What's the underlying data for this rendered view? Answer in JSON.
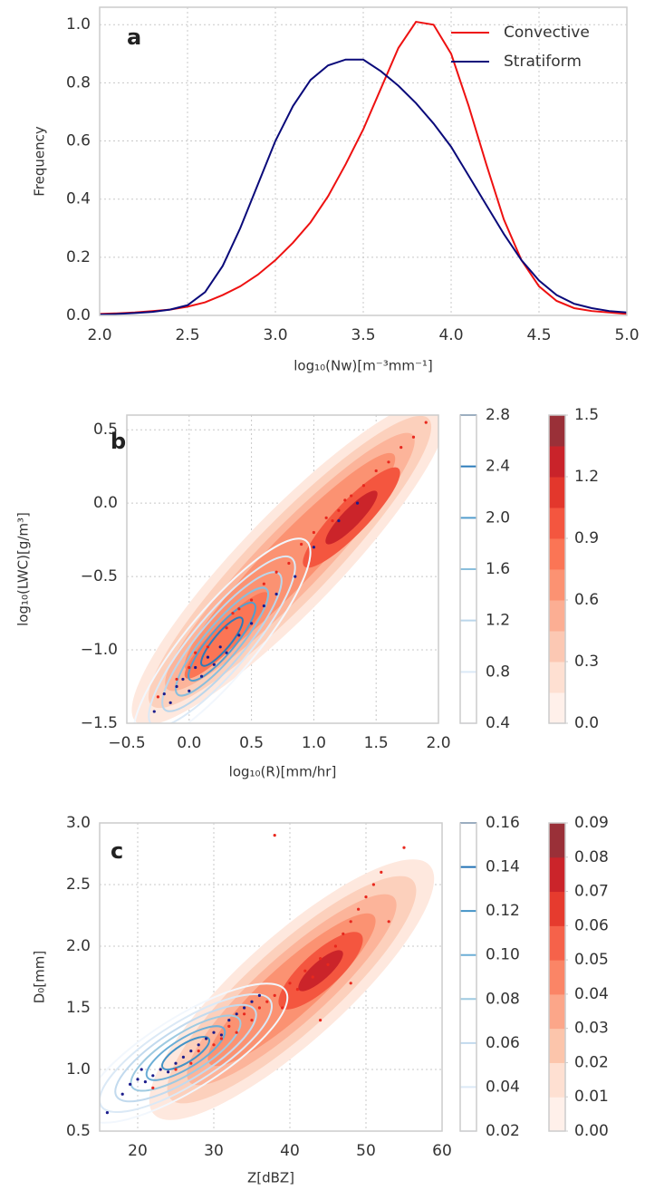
{
  "chart_data": [
    {
      "type": "line",
      "panel_label": "a",
      "xlabel": "log₁₀(Nw)[m⁻³mm⁻¹]",
      "ylabel": "Frequency",
      "x": [
        2.0,
        2.1,
        2.2,
        2.3,
        2.4,
        2.5,
        2.6,
        2.7,
        2.8,
        2.9,
        3.0,
        3.1,
        3.2,
        3.3,
        3.4,
        3.5,
        3.6,
        3.7,
        3.8,
        3.9,
        4.0,
        4.1,
        4.2,
        4.3,
        4.4,
        4.5,
        4.6,
        4.7,
        4.8,
        4.9,
        5.0
      ],
      "series": [
        {
          "name": "Convective",
          "color": "#ee1111",
          "values": [
            0.005,
            0.007,
            0.01,
            0.015,
            0.02,
            0.03,
            0.045,
            0.07,
            0.1,
            0.14,
            0.19,
            0.25,
            0.32,
            0.41,
            0.52,
            0.64,
            0.78,
            0.92,
            1.01,
            1.0,
            0.9,
            0.72,
            0.52,
            0.33,
            0.19,
            0.1,
            0.05,
            0.025,
            0.015,
            0.01,
            0.005
          ]
        },
        {
          "name": "Stratiform",
          "color": "#0a0a7a",
          "values": [
            0.003,
            0.005,
            0.008,
            0.012,
            0.02,
            0.035,
            0.08,
            0.17,
            0.3,
            0.45,
            0.6,
            0.72,
            0.81,
            0.86,
            0.88,
            0.88,
            0.84,
            0.79,
            0.73,
            0.66,
            0.58,
            0.48,
            0.38,
            0.28,
            0.19,
            0.12,
            0.07,
            0.04,
            0.025,
            0.015,
            0.01
          ]
        }
      ],
      "xlim": [
        2.0,
        5.0
      ],
      "xticks": [
        {
          "value": 2,
          "label": "2.0"
        },
        2.5,
        {
          "value": 3,
          "label": "3.0"
        },
        3.5,
        {
          "value": 4,
          "label": "4.0"
        },
        4.5,
        {
          "value": 5,
          "label": "5.0"
        }
      ],
      "ylim": [
        0,
        1.06
      ],
      "yticks": [
        {
          "value": 0,
          "label": "0.0"
        },
        0.2,
        0.4,
        0.6,
        0.8,
        {
          "value": 1,
          "label": "1.0"
        }
      ],
      "grid": true,
      "legend": "upper right"
    },
    {
      "type": "scatter",
      "panel_label": "b",
      "xlabel": "log₁₀(R)[mm/hr]",
      "ylabel": "log₁₀(LWC)[g/m³]",
      "series": [
        {
          "color": "#e8281e",
          "x": [
            -0.25,
            -0.1,
            0.05,
            0.15,
            0.3,
            0.4,
            0.5,
            0.6,
            0.7,
            0.8,
            0.9,
            1.0,
            1.1,
            1.2,
            1.25,
            1.3,
            1.4,
            1.5,
            1.6,
            1.7,
            1.8,
            1.9,
            0.35,
            1.15,
            0.0
          ],
          "values": [
            -1.32,
            -1.2,
            -1.02,
            -0.98,
            -0.85,
            -0.72,
            -0.66,
            -0.55,
            -0.47,
            -0.41,
            -0.28,
            -0.2,
            -0.1,
            -0.05,
            0.02,
            0.05,
            0.12,
            0.22,
            0.28,
            0.38,
            0.45,
            0.55,
            -0.75,
            -0.12,
            -1.12
          ]
        },
        {
          "color": "#1c1c8c",
          "x": [
            -0.28,
            -0.2,
            -0.15,
            -0.1,
            -0.05,
            0.0,
            0.05,
            0.1,
            0.15,
            0.2,
            0.25,
            0.3,
            0.4,
            0.5,
            0.6,
            0.7,
            0.85,
            1.0,
            1.2,
            1.35
          ],
          "values": [
            -1.42,
            -1.3,
            -1.36,
            -1.25,
            -1.2,
            -1.28,
            -1.12,
            -1.18,
            -1.05,
            -1.1,
            -0.98,
            -1.02,
            -0.9,
            -0.82,
            -0.7,
            -0.62,
            -0.5,
            -0.3,
            -0.12,
            0.0
          ]
        }
      ],
      "xlim": [
        -0.5,
        2.0
      ],
      "xticks": [
        {
          "value": -0.5,
          "label": "−0.5"
        },
        {
          "value": 0,
          "label": "0.0"
        },
        0.5,
        {
          "value": 1,
          "label": "1.0"
        },
        1.5,
        {
          "value": 2,
          "label": "2.0"
        }
      ],
      "ylim": [
        -1.5,
        0.6
      ],
      "yticks": [
        {
          "value": -1.5,
          "label": "−1.5"
        },
        {
          "value": -1,
          "label": "−1.0"
        },
        {
          "value": -0.5,
          "label": "−0.5"
        },
        {
          "value": 0,
          "label": "0.0"
        },
        0.5
      ],
      "grid": true,
      "colorbars": [
        {
          "style": "lines",
          "lim": [
            0.4,
            2.8
          ],
          "ticks": [
            0.4,
            0.8,
            1.2,
            1.6,
            {
              "value": 2,
              "label": "2.0"
            },
            2.4,
            2.8
          ],
          "colors": [
            "#f2f7fd",
            "#dbe9f6",
            "#bad6eb",
            "#89bedc",
            "#539ecd",
            "#2b7bba",
            "#0b559f"
          ]
        },
        {
          "style": "filled",
          "lim": [
            0,
            1.5
          ],
          "ticks": [
            {
              "value": 0,
              "label": "0.0"
            },
            0.3,
            0.6,
            0.9,
            1.2,
            1.5
          ],
          "colors": [
            "#fff0ea",
            "#fee0d2",
            "#fcc8b3",
            "#fcae93",
            "#fc9272",
            "#fb7555",
            "#f4563f",
            "#e3372c",
            "#c9232a",
            "#9a3038"
          ]
        }
      ]
    },
    {
      "type": "scatter",
      "panel_label": "c",
      "xlabel": "Z[dBZ]",
      "ylabel": "D₀[mm]",
      "series": [
        {
          "color": "#e8281e",
          "x": [
            22,
            25,
            27,
            28,
            30,
            31,
            32,
            33,
            34,
            35,
            36,
            37,
            38,
            39,
            40,
            41,
            42,
            43,
            44,
            45,
            46,
            47,
            48,
            49,
            50,
            51,
            52,
            53,
            55,
            38,
            44,
            48
          ],
          "values": [
            0.85,
            1.0,
            1.05,
            1.15,
            1.2,
            1.25,
            1.35,
            1.3,
            1.45,
            1.4,
            1.5,
            1.55,
            1.6,
            1.5,
            1.7,
            1.65,
            1.8,
            1.75,
            1.9,
            1.85,
            2.0,
            2.1,
            2.2,
            2.3,
            2.4,
            2.5,
            2.6,
            2.2,
            2.8,
            2.9,
            1.4,
            1.7
          ]
        },
        {
          "color": "#1c1c8c",
          "x": [
            16,
            18,
            19,
            20,
            20.5,
            21,
            22,
            23,
            24,
            25,
            26,
            27,
            28,
            29,
            30,
            31,
            32,
            33,
            34,
            35,
            36
          ],
          "values": [
            0.65,
            0.8,
            0.88,
            0.92,
            1.0,
            0.9,
            0.95,
            1.0,
            0.98,
            1.05,
            1.1,
            1.15,
            1.2,
            1.25,
            1.3,
            1.28,
            1.4,
            1.45,
            1.5,
            1.55,
            1.6
          ]
        }
      ],
      "xlim": [
        15,
        60
      ],
      "xticks": [
        20,
        30,
        40,
        50,
        60
      ],
      "ylim": [
        0.5,
        3.0
      ],
      "yticks": [
        0.5,
        {
          "value": 1,
          "label": "1.0"
        },
        1.5,
        {
          "value": 2,
          "label": "2.0"
        },
        2.5,
        {
          "value": 3,
          "label": "3.0"
        }
      ],
      "grid": true,
      "colorbars": [
        {
          "style": "lines",
          "lim": [
            0.02,
            0.16
          ],
          "ticks": [
            {
              "value": 0.02,
              "label": "0.02"
            },
            {
              "value": 0.04,
              "label": "0.04"
            },
            {
              "value": 0.06,
              "label": "0.06"
            },
            {
              "value": 0.08,
              "label": "0.08"
            },
            {
              "value": 0.1,
              "label": "0.10"
            },
            {
              "value": 0.12,
              "label": "0.12"
            },
            {
              "value": 0.14,
              "label": "0.14"
            },
            {
              "value": 0.16,
              "label": "0.16"
            }
          ],
          "colors": [
            "#f2f7fd",
            "#dbe9f6",
            "#c2daee",
            "#9ecae1",
            "#6baed6",
            "#4292c6",
            "#2171b5",
            "#08519c"
          ]
        },
        {
          "style": "filled",
          "lim": [
            0,
            0.09
          ],
          "ticks": [
            {
              "value": 0,
              "label": "0.00"
            },
            0.01,
            0.02,
            0.03,
            0.04,
            0.05,
            0.06,
            0.07,
            0.08,
            0.09
          ],
          "colors": [
            "#fff0ea",
            "#fee0d2",
            "#fcc5ab",
            "#fca689",
            "#fb8566",
            "#f6624a",
            "#e63b2e",
            "#cb242a",
            "#9a3038"
          ]
        }
      ]
    }
  ]
}
